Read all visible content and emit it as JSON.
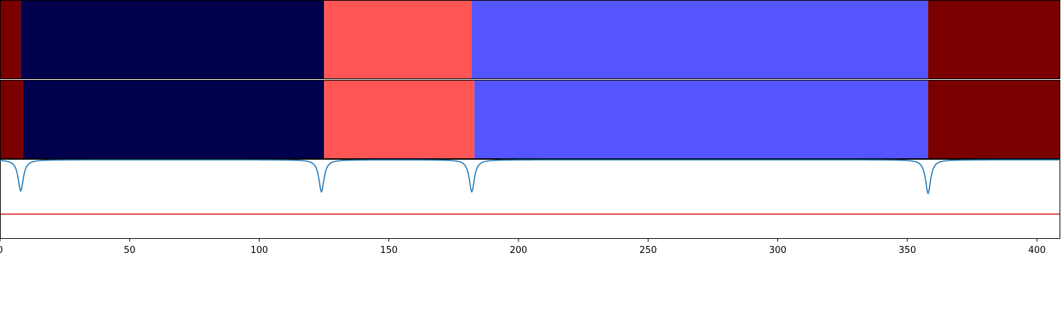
{
  "chart_data": [
    {
      "type": "heatmap",
      "description_row": "top segmentation bar",
      "segments": [
        {
          "start": 0,
          "end": 8,
          "color": "#7a0000"
        },
        {
          "start": 8,
          "end": 125,
          "color": "#00004c"
        },
        {
          "start": 125,
          "end": 182,
          "color": "#ff5555"
        },
        {
          "start": 182,
          "end": 358,
          "color": "#5555ff"
        },
        {
          "start": 358,
          "end": 409,
          "color": "#7a0000"
        }
      ]
    },
    {
      "type": "heatmap",
      "segments": [
        {
          "start": 0,
          "end": 9,
          "color": "#7a0000"
        },
        {
          "start": 9,
          "end": 125,
          "color": "#00004c"
        },
        {
          "start": 125,
          "end": 183,
          "color": "#ff5555"
        },
        {
          "start": 183,
          "end": 358,
          "color": "#5555ff"
        },
        {
          "start": 358,
          "end": 409,
          "color": "#7a0000"
        }
      ]
    },
    {
      "type": "line",
      "xlim": [
        0,
        409
      ],
      "ylim": [
        0,
        1
      ],
      "grid": false,
      "x_ticks": [
        0,
        50,
        100,
        150,
        200,
        250,
        300,
        350,
        400
      ],
      "tick_labels": [
        "0",
        "50",
        "100",
        "150",
        "200",
        "250",
        "300",
        "350",
        "400"
      ],
      "series": [
        {
          "color": "#1f77b4",
          "baseline": 0.99,
          "dips": [
            {
              "x": 8,
              "y": 0.6
            },
            {
              "x": 124,
              "y": 0.59
            },
            {
              "x": 182,
              "y": 0.59
            },
            {
              "x": 358,
              "y": 0.57
            }
          ]
        },
        {
          "color": "#d62728",
          "constant": 0.31
        }
      ]
    }
  ]
}
